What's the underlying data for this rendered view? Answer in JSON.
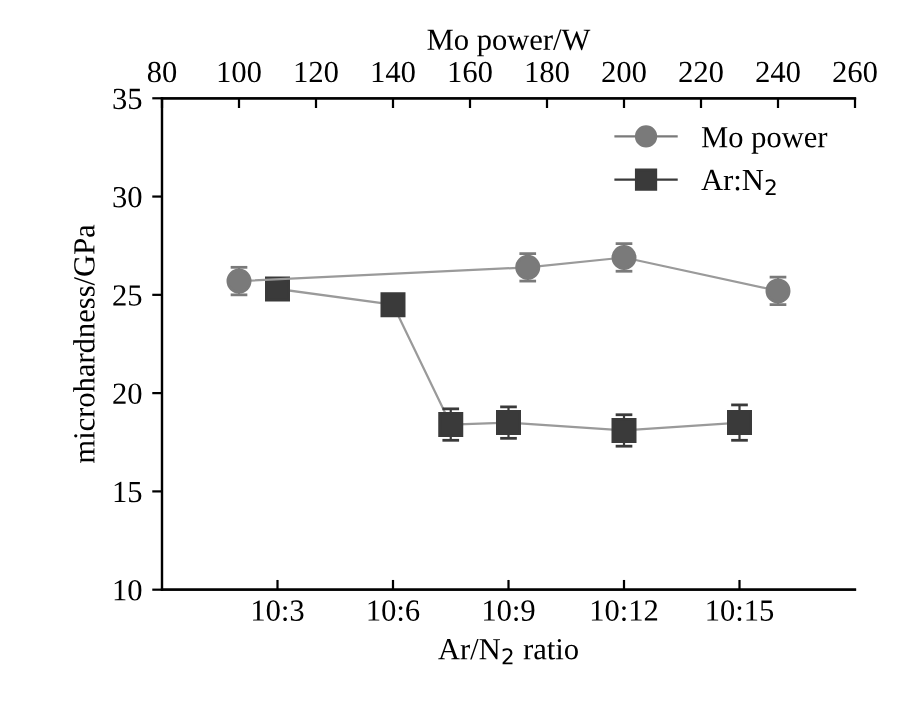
{
  "chart_data": {
    "type": "line",
    "xlabel": "Ar/N$_{2}$ ratio",
    "x2label": "Mo power/W",
    "ylabel": "microhardness/GPa",
    "categories": [
      null,
      null,
      "10:3",
      null,
      "10:6",
      null,
      "10:9",
      null,
      "10:12",
      null,
      "10:15",
      null,
      null
    ],
    "x2lim": [
      80,
      260
    ],
    "x2ticks": [
      80,
      100,
      120,
      140,
      160,
      180,
      200,
      220,
      240,
      260
    ],
    "ylim": [
      10,
      35
    ],
    "yticks": [
      10,
      15,
      20,
      25,
      30,
      35
    ],
    "series": [
      {
        "name": "Mo power",
        "axis": "x2",
        "marker": "circle",
        "color": "#7a7a7a",
        "x": [
          100,
          175,
          200,
          240
        ],
        "values": [
          25.7,
          26.4,
          26.9,
          25.2
        ],
        "errors": [
          0.7,
          0.7,
          0.7,
          0.7
        ]
      },
      {
        "name": "Ar:N$_{2}$",
        "marker": "square",
        "color": "#3a3a3a",
        "values": [
          null,
          null,
          25.3,
          null,
          24.5,
          18.4,
          18.5,
          null,
          18.1,
          null,
          18.5,
          null,
          null
        ],
        "errors": [
          null,
          null,
          null,
          null,
          null,
          0.8,
          0.8,
          null,
          0.8,
          null,
          0.9,
          null,
          null
        ]
      }
    ],
    "legend": "top right",
    "grid": false,
    "line_style": "solid"
  }
}
